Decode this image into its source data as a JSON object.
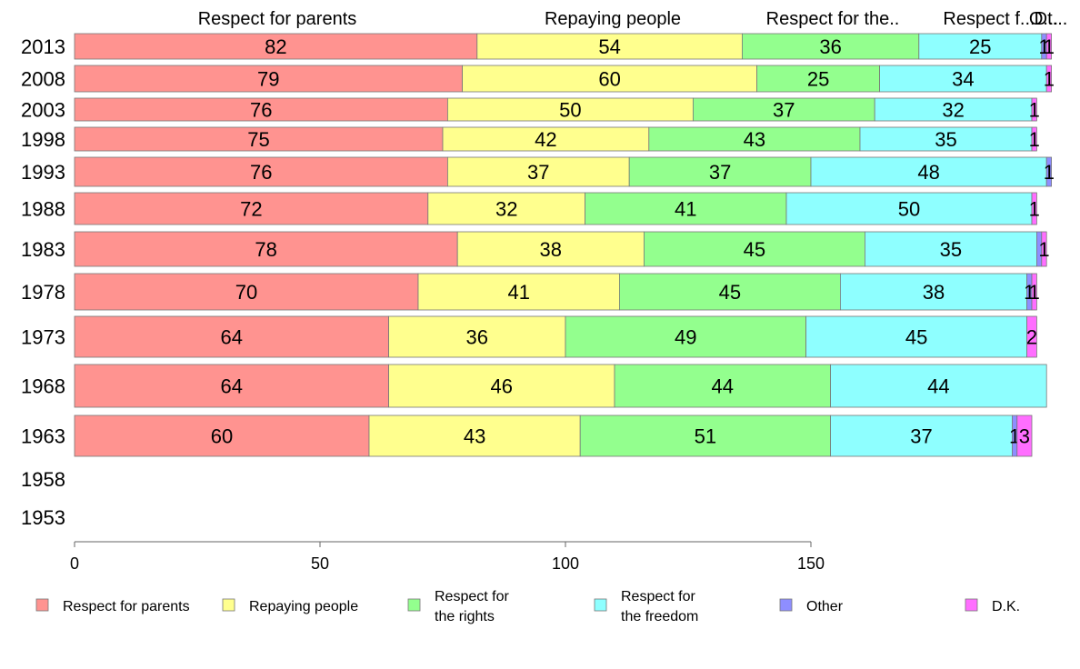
{
  "chart_data": {
    "type": "bar",
    "orientation": "horizontal",
    "stacked": true,
    "categories": [
      "2013",
      "2008",
      "2003",
      "1998",
      "1993",
      "1988",
      "1983",
      "1978",
      "1973",
      "1968",
      "1963",
      "1958",
      "1953"
    ],
    "series": [
      {
        "name": "Respect for parents",
        "color": "#ff9390",
        "values": [
          82,
          79,
          76,
          75,
          76,
          72,
          78,
          70,
          64,
          64,
          60,
          null,
          null
        ]
      },
      {
        "name": "Repaying people",
        "color": "#ffff8e",
        "values": [
          54,
          60,
          50,
          42,
          37,
          32,
          38,
          41,
          36,
          46,
          43,
          null,
          null
        ]
      },
      {
        "name": "Respect for the rights",
        "color": "#93ff8e",
        "values": [
          36,
          25,
          37,
          43,
          37,
          41,
          45,
          45,
          49,
          44,
          51,
          null,
          null
        ]
      },
      {
        "name": "Respect for the freedom",
        "color": "#8effff",
        "values": [
          25,
          34,
          32,
          35,
          48,
          50,
          35,
          38,
          45,
          44,
          37,
          null,
          null
        ]
      },
      {
        "name": "Other",
        "color": "#8e8eff",
        "values": [
          1,
          0,
          0,
          0,
          1,
          0,
          1,
          1,
          0,
          0,
          1,
          null,
          null
        ]
      },
      {
        "name": "D.K.",
        "color": "#ff6eff",
        "values": [
          1,
          1,
          1,
          1,
          0,
          1,
          1,
          1,
          2,
          0,
          3,
          null,
          null
        ]
      }
    ],
    "column_labels": [
      "Respect for parents",
      "Repaying people",
      "Respect for the..",
      "Respect f...",
      "O...",
      "Dt..."
    ],
    "legend_labels": [
      [
        "Respect for parents"
      ],
      [
        "Repaying people"
      ],
      [
        "Respect for",
        "the rights"
      ],
      [
        "Respect for",
        "the freedom"
      ],
      [
        "Other"
      ],
      [
        "D.K."
      ]
    ],
    "bar_labels": [
      [
        "82",
        "54",
        "36",
        "25",
        "1",
        "1"
      ],
      [
        "79",
        "60",
        "25",
        "34",
        "",
        "1"
      ],
      [
        "76",
        "50",
        "37",
        "32",
        "",
        "1"
      ],
      [
        "75",
        "42",
        "43",
        "35",
        "",
        "1"
      ],
      [
        "76",
        "37",
        "37",
        "48",
        "1",
        ""
      ],
      [
        "72",
        "32",
        "41",
        "50",
        "",
        "1"
      ],
      [
        "78",
        "38",
        "45",
        "35",
        "",
        "1"
      ],
      [
        "70",
        "41",
        "45",
        "38",
        "1",
        "1"
      ],
      [
        "64",
        "36",
        "49",
        "45",
        "",
        "2"
      ],
      [
        "64",
        "46",
        "44",
        "44",
        "",
        ""
      ],
      [
        "60",
        "43",
        "51",
        "37",
        "1",
        "3"
      ],
      [],
      []
    ],
    "xticks": [
      0,
      50,
      100,
      150
    ],
    "xlim": [
      0,
      200
    ],
    "legend_position": "bottom",
    "grid": false
  }
}
